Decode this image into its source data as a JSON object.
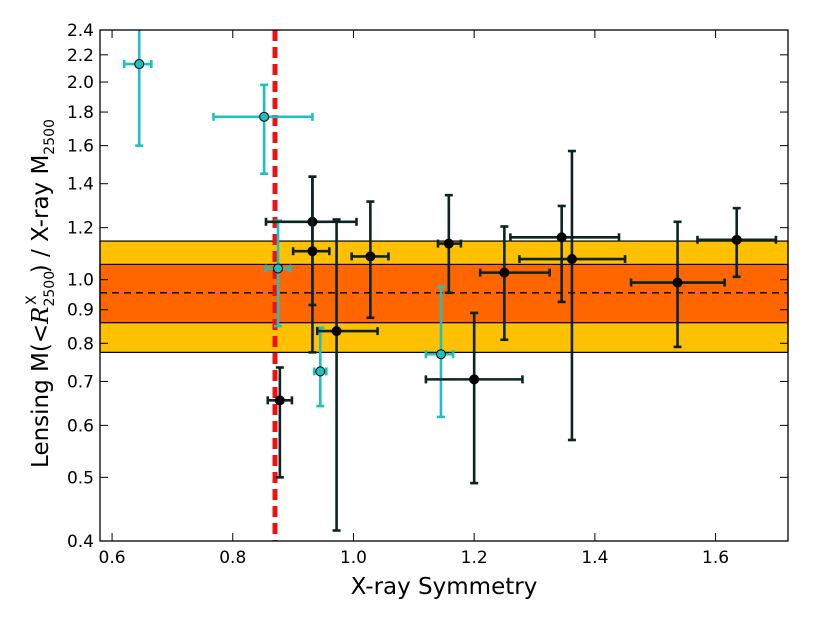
{
  "chart_data": {
    "type": "scatter",
    "title": "",
    "xlabel": "X-ray Symmetry",
    "ylabel": {
      "prefix": "Lensing M(",
      "lt": "<",
      "r": "R",
      "sub": "2500",
      "sup": "X",
      "close": ")",
      "middle": " / X-ray M",
      "sub2": "2500"
    },
    "xlim": [
      0.58,
      1.72
    ],
    "ylim": [
      0.4,
      2.4
    ],
    "yscale": "log",
    "x_ticks": [
      {
        "value": 0.6,
        "label": "0.6"
      },
      {
        "value": 0.8,
        "label": "0.8"
      },
      {
        "value": 1.0,
        "label": "1.0"
      },
      {
        "value": 1.2,
        "label": "1.2"
      },
      {
        "value": 1.4,
        "label": "1.4"
      },
      {
        "value": 1.6,
        "label": "1.6"
      }
    ],
    "y_ticks": [
      {
        "value": 0.4,
        "label": "0.4"
      },
      {
        "value": 0.5,
        "label": "0.5"
      },
      {
        "value": 0.6,
        "label": "0.6"
      },
      {
        "value": 0.7,
        "label": "0.7"
      },
      {
        "value": 0.8,
        "label": "0.8"
      },
      {
        "value": 0.9,
        "label": "0.9"
      },
      {
        "value": 1.0,
        "label": "1.0"
      },
      {
        "value": 1.2,
        "label": "1.2"
      },
      {
        "value": 1.4,
        "label": "1.4"
      },
      {
        "value": 1.6,
        "label": "1.6"
      },
      {
        "value": 1.8,
        "label": "1.8"
      },
      {
        "value": 2.0,
        "label": "2.0"
      },
      {
        "value": 2.2,
        "label": "2.2"
      },
      {
        "value": 2.4,
        "label": "2.4"
      }
    ],
    "bands": [
      {
        "name": "outer-band",
        "ymin": 0.775,
        "ymax": 1.145,
        "color": "#ffc000"
      },
      {
        "name": "inner-band",
        "ymin": 0.86,
        "ymax": 1.055,
        "color": "#ff6600"
      }
    ],
    "hline": {
      "y": 0.955,
      "style": "dashed",
      "color": "#000000"
    },
    "vline": {
      "x": 0.87,
      "style": "dashed",
      "color": "#ee1111"
    },
    "series": [
      {
        "name": "cyan",
        "color": "#20c0c0",
        "points": [
          {
            "x": 0.645,
            "y": 2.13,
            "xlo": 0.62,
            "xhi": 0.665,
            "ylo": 1.6,
            "yhi": 2.42
          },
          {
            "x": 0.852,
            "y": 1.77,
            "xlo": 0.768,
            "xhi": 0.932,
            "ylo": 1.45,
            "yhi": 1.98
          },
          {
            "x": 0.875,
            "y": 1.04,
            "xlo": 0.855,
            "xhi": 0.895,
            "ylo": 0.85,
            "yhi": 1.23
          },
          {
            "x": 0.945,
            "y": 0.725,
            "xlo": 0.935,
            "xhi": 0.955,
            "ylo": 0.642,
            "yhi": 0.845
          },
          {
            "x": 1.145,
            "y": 0.77,
            "xlo": 1.12,
            "xhi": 1.165,
            "ylo": 0.618,
            "yhi": 0.975
          }
        ]
      },
      {
        "name": "black",
        "color": "#0a2424",
        "points": [
          {
            "x": 0.878,
            "y": 0.655,
            "xlo": 0.858,
            "xhi": 0.898,
            "ylo": 0.5,
            "yhi": 0.735
          },
          {
            "x": 0.932,
            "y": 1.225,
            "xlo": 0.855,
            "xhi": 1.005,
            "ylo": 0.915,
            "yhi": 1.435
          },
          {
            "x": 0.932,
            "y": 1.105,
            "xlo": 0.9,
            "xhi": 0.96,
            "ylo": 0.775,
            "yhi": 1.435
          },
          {
            "x": 0.972,
            "y": 0.835,
            "xlo": 0.94,
            "xhi": 1.04,
            "ylo": 0.415,
            "yhi": 1.235
          },
          {
            "x": 1.028,
            "y": 1.085,
            "xlo": 0.997,
            "xhi": 1.058,
            "ylo": 0.875,
            "yhi": 1.315
          },
          {
            "x": 1.158,
            "y": 1.135,
            "xlo": 1.14,
            "xhi": 1.178,
            "ylo": 0.955,
            "yhi": 1.345
          },
          {
            "x": 1.2,
            "y": 0.705,
            "xlo": 1.12,
            "xhi": 1.28,
            "ylo": 0.49,
            "yhi": 0.89
          },
          {
            "x": 1.25,
            "y": 1.025,
            "xlo": 1.21,
            "xhi": 1.325,
            "ylo": 0.81,
            "yhi": 1.205
          },
          {
            "x": 1.345,
            "y": 1.16,
            "xlo": 1.26,
            "xhi": 1.44,
            "ylo": 0.925,
            "yhi": 1.295
          },
          {
            "x": 1.362,
            "y": 1.075,
            "xlo": 1.275,
            "xhi": 1.45,
            "ylo": 0.57,
            "yhi": 1.57
          },
          {
            "x": 1.537,
            "y": 0.99,
            "xlo": 1.46,
            "xhi": 1.615,
            "ylo": 0.79,
            "yhi": 1.225
          },
          {
            "x": 1.635,
            "y": 1.15,
            "xlo": 1.57,
            "xhi": 1.7,
            "ylo": 1.01,
            "yhi": 1.285
          }
        ]
      }
    ]
  }
}
